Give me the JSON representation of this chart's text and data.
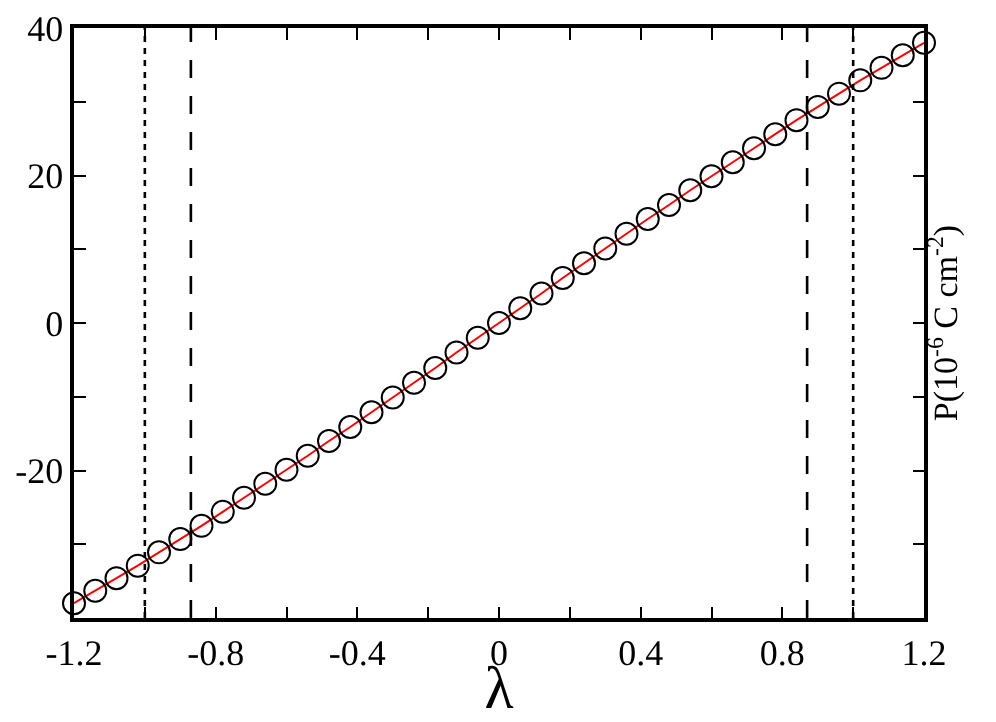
{
  "chart_data": {
    "type": "scatter",
    "xlabel": "λ",
    "ylabel": "P(10$^{-6}$ C cm$^{-2}$)",
    "x": [
      -1.2,
      -1.14,
      -1.08,
      -1.02,
      -0.96,
      -0.9,
      -0.84,
      -0.78,
      -0.72,
      -0.66,
      -0.6,
      -0.54,
      -0.48,
      -0.42,
      -0.36,
      -0.3,
      -0.24,
      -0.18,
      -0.12,
      -0.06,
      0,
      0.06,
      0.12,
      0.18,
      0.24,
      0.3,
      0.36,
      0.42,
      0.48,
      0.54,
      0.6,
      0.66,
      0.72,
      0.78,
      0.84,
      0.9,
      0.96,
      1.02,
      1.08,
      1.14,
      1.2
    ],
    "series": [
      {
        "type": "scatter",
        "marker": "circle",
        "color": "#000000",
        "values": [
          -38.0,
          -36.3,
          -34.6,
          -32.9,
          -31.1,
          -29.3,
          -27.5,
          -25.6,
          -23.7,
          -21.8,
          -19.9,
          -18.0,
          -16.0,
          -14.1,
          -12.1,
          -10.1,
          -8.1,
          -6.1,
          -4.0,
          -2.0,
          0,
          2.0,
          4.0,
          6.1,
          8.1,
          10.1,
          12.1,
          14.1,
          16.0,
          18.0,
          19.9,
          21.8,
          23.7,
          25.6,
          27.5,
          29.3,
          31.1,
          32.9,
          34.6,
          36.3,
          38.0
        ]
      },
      {
        "type": "line",
        "line_style": "solid",
        "color": "#ff0000",
        "values": [
          -38.0,
          -36.3,
          -34.6,
          -32.9,
          -31.1,
          -29.3,
          -27.5,
          -25.6,
          -23.7,
          -21.8,
          -19.9,
          -18.0,
          -16.0,
          -14.1,
          -12.1,
          -10.1,
          -8.1,
          -6.1,
          -4.0,
          -2.0,
          0,
          2.0,
          4.0,
          6.1,
          8.1,
          10.1,
          12.1,
          14.1,
          16.0,
          18.0,
          19.9,
          21.8,
          23.7,
          25.6,
          27.5,
          29.3,
          31.1,
          32.9,
          34.6,
          36.3,
          38.0
        ]
      }
    ],
    "xlim": [
      -1.2,
      1.2
    ],
    "xticks": [
      -1.2,
      {
        "value": -1.0,
        "label": null
      },
      -0.8,
      {
        "value": -0.6,
        "label": null
      },
      -0.4,
      {
        "value": -0.2,
        "label": null
      },
      0,
      {
        "value": 0.2,
        "label": null
      },
      0.4,
      {
        "value": 0.6,
        "label": null
      },
      0.8,
      {
        "value": 1.0,
        "label": null
      },
      1.2
    ],
    "ylim": [
      -40,
      40
    ],
    "yticks": [
      {
        "value": -30,
        "label": null
      },
      -20,
      {
        "value": -10,
        "label": null
      },
      0,
      {
        "value": 10,
        "label": null
      },
      20,
      {
        "value": 30,
        "label": null
      },
      40
    ],
    "ref_lines": [
      {
        "axis": "x",
        "value": -1,
        "line_style": "dotted",
        "color": "#000000"
      },
      {
        "axis": "x",
        "value": -0.87,
        "line_style": "dashed",
        "color": "#000000"
      },
      {
        "axis": "x",
        "value": 0.87,
        "line_style": "dashed",
        "color": "#000000"
      },
      {
        "axis": "x",
        "value": 1,
        "line_style": "dotted",
        "color": "#000000"
      }
    ],
    "grid": false
  }
}
